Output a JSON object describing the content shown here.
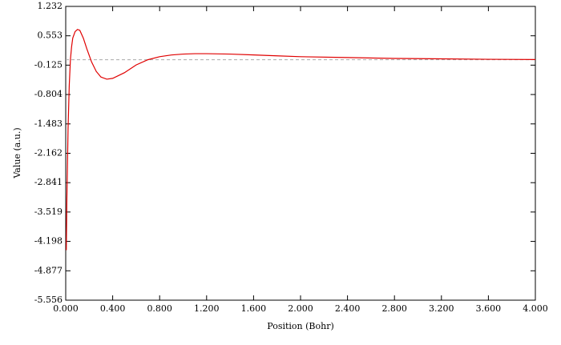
{
  "chart_data": {
    "type": "line",
    "x_label": "Position (Bohr)",
    "y_label": "Value (a.u.)",
    "x": [
      0.005,
      0.01,
      0.02,
      0.03,
      0.04,
      0.05,
      0.06,
      0.08,
      0.1,
      0.12,
      0.15,
      0.18,
      0.22,
      0.26,
      0.3,
      0.35,
      0.4,
      0.5,
      0.6,
      0.7,
      0.8,
      0.9,
      1.0,
      1.1,
      1.2,
      1.4,
      1.6,
      1.8,
      2.0,
      2.4,
      2.8,
      3.2,
      3.6,
      4.0
    ],
    "series": [
      {
        "color": "#e00000",
        "values": [
          -4.4,
          -3.2,
          -1.6,
          -0.6,
          0.0,
          0.3,
          0.5,
          0.65,
          0.7,
          0.68,
          0.5,
          0.25,
          -0.05,
          -0.27,
          -0.4,
          -0.45,
          -0.43,
          -0.3,
          -0.12,
          0.0,
          0.07,
          0.11,
          0.13,
          0.14,
          0.14,
          0.13,
          0.11,
          0.09,
          0.07,
          0.05,
          0.03,
          0.02,
          0.01,
          0.005
        ]
      }
    ],
    "xlim": [
      0,
      4
    ],
    "xticks": [
      {
        "value": 0,
        "label": "0.000"
      },
      {
        "value": 0.4,
        "label": "0.400"
      },
      {
        "value": 0.8,
        "label": "0.800"
      },
      {
        "value": 1.2,
        "label": "1.200"
      },
      {
        "value": 1.6,
        "label": "1.600"
      },
      {
        "value": 2.0,
        "label": "2.000"
      },
      {
        "value": 2.4,
        "label": "2.400"
      },
      {
        "value": 2.8,
        "label": "2.800"
      },
      {
        "value": 3.2,
        "label": "3.200"
      },
      {
        "value": 3.6,
        "label": "3.600"
      },
      {
        "value": 4.0,
        "label": "4.000"
      }
    ],
    "ylim": [
      -5.556,
      1.232
    ],
    "yticks": [
      -5.556,
      -4.877,
      -4.198,
      -3.519,
      -2.841,
      -2.162,
      -1.483,
      -0.804,
      -0.125,
      0.553,
      1.232
    ],
    "zero_line": true
  }
}
